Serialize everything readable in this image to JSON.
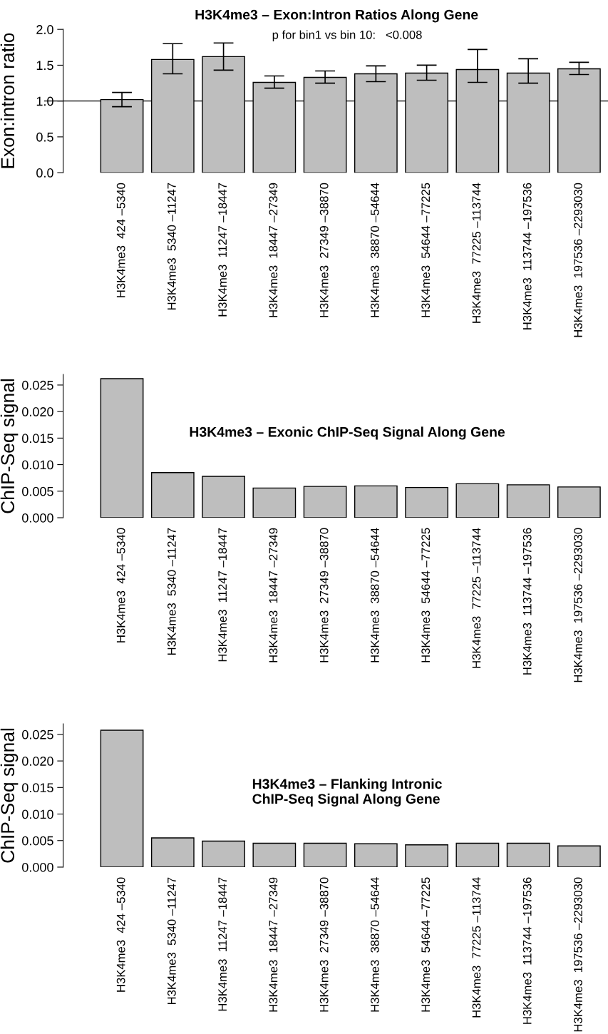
{
  "chart_data": [
    {
      "type": "bar",
      "title": "H3K4me3 – Exon:Intron Ratios Along Gene",
      "ylabel": "Exon:intron ratio",
      "categories": [
        "H3K4me3  424 –5340",
        "H3K4me3  5340 –11247",
        "H3K4me3  11247 –18447",
        "H3K4me3  18447 –27349",
        "H3K4me3  27349 –38870",
        "H3K4me3  38870 –54644",
        "H3K4me3  54644 –77225",
        "H3K4me3  77225 –113744",
        "H3K4me3  113744 –197536",
        "H3K4me3  197536 –2293030"
      ],
      "values": [
        1.02,
        1.58,
        1.62,
        1.26,
        1.33,
        1.38,
        1.39,
        1.44,
        1.39,
        1.45
      ],
      "errors": [
        [
          0.92,
          1.12
        ],
        [
          1.38,
          1.8
        ],
        [
          1.43,
          1.81
        ],
        [
          1.18,
          1.35
        ],
        [
          1.25,
          1.42
        ],
        [
          1.27,
          1.49
        ],
        [
          1.29,
          1.5
        ],
        [
          1.26,
          1.72
        ],
        [
          1.25,
          1.59
        ],
        [
          1.37,
          1.54
        ]
      ],
      "color": "#bebebe",
      "ylim": [
        0,
        2.0
      ],
      "yticks": [
        {
          "value": 0,
          "label": "0.0"
        },
        {
          "value": 0.5,
          "label": "0.5"
        },
        {
          "value": 1.0,
          "label": "1.0"
        },
        {
          "value": 1.5,
          "label": "1.5"
        },
        {
          "value": 2.0,
          "label": "2.0"
        }
      ],
      "ref_lines": [
        {
          "axis": "y",
          "value": 1.0,
          "color": "#000000"
        }
      ],
      "annotations": [
        "p for bin1 vs bin 10:   <0.008"
      ],
      "grid": false,
      "legend": false
    },
    {
      "type": "bar",
      "title": "H3K4me3 – Exonic ChIP-Seq Signal Along Gene",
      "ylabel": "ChIP-Seq signal",
      "categories": [
        "H3K4me3  424 –5340",
        "H3K4me3  5340 –11247",
        "H3K4me3  11247 –18447",
        "H3K4me3  18447 –27349",
        "H3K4me3  27349 –38870",
        "H3K4me3  38870 –54644",
        "H3K4me3  54644 –77225",
        "H3K4me3  77225 –113744",
        "H3K4me3  113744 –197536",
        "H3K4me3  197536 –2293030"
      ],
      "values": [
        0.0262,
        0.0085,
        0.0078,
        0.0056,
        0.0059,
        0.006,
        0.0057,
        0.0064,
        0.0062,
        0.0058
      ],
      "color": "#bebebe",
      "ylim": [
        0,
        0.027
      ],
      "yticks": [
        {
          "value": 0,
          "label": "0.000"
        },
        0.005,
        {
          "value": 0.01,
          "label": "0.010"
        },
        0.015,
        {
          "value": 0.02,
          "label": "0.020"
        },
        0.025
      ],
      "grid": false,
      "legend": false
    },
    {
      "type": "bar",
      "title": "H3K4me3 – Flanking Intronic\nChIP-Seq Signal Along Gene",
      "ylabel": "ChIP-Seq signal",
      "categories": [
        "H3K4me3  424 –5340",
        "H3K4me3  5340 –11247",
        "H3K4me3  11247 –18447",
        "H3K4me3  18447 –27349",
        "H3K4me3  27349 –38870",
        "H3K4me3  38870 –54644",
        "H3K4me3  54644 –77225",
        "H3K4me3  77225 –113744",
        "H3K4me3  113744 –197536",
        "H3K4me3  197536 –2293030"
      ],
      "values": [
        0.0258,
        0.0055,
        0.0049,
        0.0045,
        0.0045,
        0.0044,
        0.0042,
        0.0045,
        0.0045,
        0.004
      ],
      "color": "#bebebe",
      "ylim": [
        0,
        0.027
      ],
      "yticks": [
        {
          "value": 0,
          "label": "0.000"
        },
        0.005,
        {
          "value": 0.01,
          "label": "0.010"
        },
        0.015,
        {
          "value": 0.02,
          "label": "0.020"
        },
        0.025
      ],
      "grid": false,
      "legend": false
    }
  ]
}
